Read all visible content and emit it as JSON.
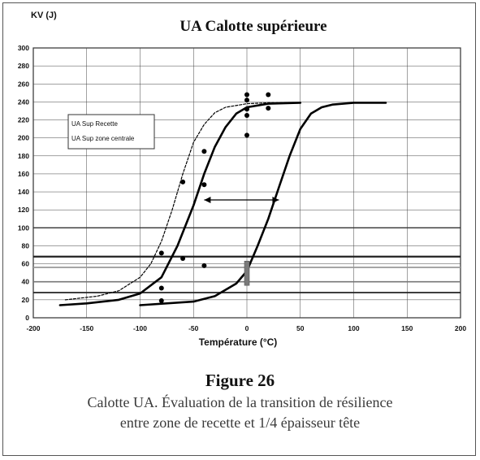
{
  "figure": {
    "label": "Figure 26",
    "caption_line1": "Calotte UA. Évaluation de la transition de résilience",
    "caption_line2": "entre zone de recette et 1/4 épaisseur tête"
  },
  "chart_data": {
    "type": "scatter",
    "title": "UA Calotte supérieure",
    "ylabel": "KV (J)",
    "xlabel": "Température (°C)",
    "xlim": [
      -200,
      200
    ],
    "ylim": [
      0,
      300
    ],
    "x_ticks": [
      -200,
      -150,
      -100,
      -50,
      0,
      50,
      100,
      150,
      200
    ],
    "y_ticks": [
      0,
      20,
      40,
      60,
      80,
      100,
      120,
      140,
      160,
      180,
      200,
      220,
      240,
      260,
      280,
      300
    ],
    "grid": true,
    "legend": {
      "placement": "upper-left",
      "entries": [
        "UA Sup Recette",
        "UA Sup zone centrale"
      ]
    },
    "points": {
      "x": [
        -80,
        -80,
        -80,
        -60,
        -60,
        -40,
        -40,
        -40,
        0,
        0,
        0,
        0,
        0,
        20,
        20
      ],
      "y": [
        72,
        33,
        19,
        151,
        66,
        185,
        148,
        58,
        248,
        242,
        232,
        225,
        203,
        248,
        233
      ]
    },
    "curves": [
      {
        "style": "dashed",
        "x": [
          -170,
          -140,
          -120,
          -100,
          -90,
          -80,
          -70,
          -60,
          -50,
          -40,
          -30,
          -20,
          0,
          20,
          50
        ],
        "y": [
          20,
          24,
          30,
          45,
          60,
          85,
          120,
          160,
          195,
          215,
          228,
          234,
          238,
          239,
          239
        ]
      },
      {
        "style": "solid",
        "x": [
          -175,
          -150,
          -120,
          -100,
          -80,
          -65,
          -50,
          -40,
          -30,
          -20,
          -10,
          0,
          20,
          50
        ],
        "y": [
          14,
          16,
          20,
          27,
          45,
          80,
          125,
          160,
          190,
          212,
          227,
          234,
          238,
          239
        ]
      },
      {
        "style": "solid",
        "x": [
          -100,
          -50,
          -30,
          -10,
          0,
          10,
          20,
          30,
          40,
          50,
          60,
          70,
          80,
          100,
          130
        ],
        "y": [
          14,
          18,
          24,
          38,
          52,
          80,
          110,
          145,
          180,
          210,
          227,
          234,
          237,
          239,
          239
        ]
      }
    ],
    "horizontal_lines": [
      {
        "y": 100,
        "color": "#333333",
        "width": 1.4
      },
      {
        "y": 68,
        "color": "#222222",
        "width": 2.2
      },
      {
        "y": 56,
        "color": "#999999",
        "width": 1.8
      },
      {
        "y": 40,
        "color": "#777777",
        "width": 1.6
      },
      {
        "y": 28,
        "color": "#222222",
        "width": 1.8
      }
    ],
    "arrow": {
      "x_from": -40,
      "x_to": 30,
      "y": 131
    },
    "bar_marker": {
      "x": 0,
      "y_from": 36,
      "y_to": 63,
      "color": "#7a7a7a"
    }
  }
}
